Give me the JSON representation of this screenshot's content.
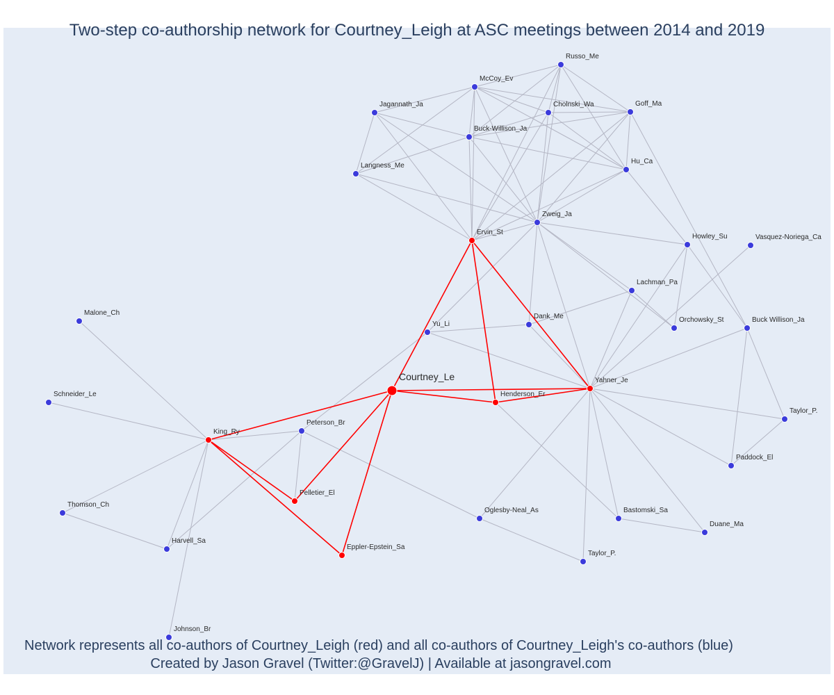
{
  "title": "Two-step co-authorship network for Courtney_Leigh at ASC meetings between 2014 and 2019",
  "footer": {
    "line1": "Network represents all co-authors of Courtney_Leigh (red) and all co-authors of Courtney_Leigh's co-authors (blue)",
    "line2": "Created by Jason Gravel (Twitter:@GravelJ) | Available at jasongravel.com"
  },
  "colors": {
    "plot_bg": "#e5ecf6",
    "first_degree": "#ff0000",
    "second_degree": "#3b3bdb",
    "edge_gray": "#b4b6c4",
    "edge_red": "#ff0000"
  },
  "nodes": [
    {
      "id": "Courtney_Le",
      "label": "Courtney_Le",
      "group": "focus"
    },
    {
      "id": "Ervin_St",
      "label": "Ervin_St",
      "group": "red"
    },
    {
      "id": "Yahner_Je",
      "label": "Yahner_Je",
      "group": "red"
    },
    {
      "id": "Henderson_Er",
      "label": "Henderson_Er",
      "group": "red"
    },
    {
      "id": "King_Ry",
      "label": "King_Ry",
      "group": "red"
    },
    {
      "id": "Pelletier_El",
      "label": "Pelletier_El",
      "group": "red"
    },
    {
      "id": "Eppler-Epstein_Sa",
      "label": "Eppler-Epstein_Sa",
      "group": "red"
    },
    {
      "id": "Russo_Me",
      "label": "Russo_Me",
      "group": "blue"
    },
    {
      "id": "McCoy_Ev",
      "label": "McCoy_Ev",
      "group": "blue"
    },
    {
      "id": "Jagannath_Ja",
      "label": "Jagannath_Ja",
      "group": "blue"
    },
    {
      "id": "Cholnski_Wa",
      "label": "Cholnski_Wa",
      "group": "blue"
    },
    {
      "id": "Goff_Ma",
      "label": "Goff_Ma",
      "group": "blue"
    },
    {
      "id": "Buck-Willison_Ja",
      "label": "Buck-Willison_Ja",
      "group": "blue"
    },
    {
      "id": "Langness_Me",
      "label": "Langness_Me",
      "group": "blue"
    },
    {
      "id": "Hu_Ca",
      "label": "Hu_Ca",
      "group": "blue"
    },
    {
      "id": "Zweig_Ja",
      "label": "Zweig_Ja",
      "group": "blue"
    },
    {
      "id": "Howley_Su",
      "label": "Howley_Su",
      "group": "blue"
    },
    {
      "id": "Vasquez-Noriega_Ca",
      "label": "Vasquez-Noriega_Ca",
      "group": "blue"
    },
    {
      "id": "Lachman_Pa",
      "label": "Lachman_Pa",
      "group": "blue"
    },
    {
      "id": "Malone_Ch",
      "label": "Malone_Ch",
      "group": "blue"
    },
    {
      "id": "Dank_Me",
      "label": "Dank_Me",
      "group": "blue"
    },
    {
      "id": "Yu_Li",
      "label": "Yu_Li",
      "group": "blue"
    },
    {
      "id": "Orchowsky_St",
      "label": "Orchowsky_St",
      "group": "blue"
    },
    {
      "id": "Buck_Willison_Ja",
      "label": "Buck Willison_Ja",
      "group": "blue"
    },
    {
      "id": "Schneider_Le",
      "label": "Schneider_Le",
      "group": "blue"
    },
    {
      "id": "Peterson_Br",
      "label": "Peterson_Br",
      "group": "blue"
    },
    {
      "id": "Taylor_P_1",
      "label": "Taylor_P.",
      "group": "blue"
    },
    {
      "id": "Paddock_El",
      "label": "Paddock_El",
      "group": "blue"
    },
    {
      "id": "Thomson_Ch",
      "label": "Thomson_Ch",
      "group": "blue"
    },
    {
      "id": "Oglesby-Neal_As",
      "label": "Oglesby-Neal_As",
      "group": "blue"
    },
    {
      "id": "Bastomski_Sa",
      "label": "Bastomski_Sa",
      "group": "blue"
    },
    {
      "id": "Harvell_Sa",
      "label": "Harvell_Sa",
      "group": "blue"
    },
    {
      "id": "Duane_Ma",
      "label": "Duane_Ma",
      "group": "blue"
    },
    {
      "id": "Taylor_P_2",
      "label": "Taylor_P.",
      "group": "blue"
    },
    {
      "id": "Johnson_Br",
      "label": "Johnson_Br",
      "group": "blue"
    }
  ],
  "edges": [
    [
      "Courtney_Le",
      "Ervin_St",
      "red"
    ],
    [
      "Courtney_Le",
      "Henderson_Er",
      "red"
    ],
    [
      "Courtney_Le",
      "Yahner_Je",
      "red"
    ],
    [
      "Courtney_Le",
      "King_Ry",
      "red"
    ],
    [
      "Courtney_Le",
      "Pelletier_El",
      "red"
    ],
    [
      "Courtney_Le",
      "Eppler-Epstein_Sa",
      "red"
    ],
    [
      "Ervin_St",
      "Henderson_Er",
      "red"
    ],
    [
      "Ervin_St",
      "Yahner_Je",
      "red"
    ],
    [
      "Henderson_Er",
      "Yahner_Je",
      "red"
    ],
    [
      "King_Ry",
      "Pelletier_El",
      "red"
    ],
    [
      "King_Ry",
      "Eppler-Epstein_Sa",
      "red"
    ],
    [
      "Russo_Me",
      "McCoy_Ev",
      "gray"
    ],
    [
      "Russo_Me",
      "Cholnski_Wa",
      "gray"
    ],
    [
      "Russo_Me",
      "Goff_Ma",
      "gray"
    ],
    [
      "Russo_Me",
      "Buck-Willison_Ja",
      "gray"
    ],
    [
      "Russo_Me",
      "Hu_Ca",
      "gray"
    ],
    [
      "Russo_Me",
      "Zweig_Ja",
      "gray"
    ],
    [
      "Russo_Me",
      "Ervin_St",
      "gray"
    ],
    [
      "McCoy_Ev",
      "Cholnski_Wa",
      "gray"
    ],
    [
      "McCoy_Ev",
      "Goff_Ma",
      "gray"
    ],
    [
      "McCoy_Ev",
      "Jagannath_Ja",
      "gray"
    ],
    [
      "McCoy_Ev",
      "Langness_Me",
      "gray"
    ],
    [
      "McCoy_Ev",
      "Buck-Willison_Ja",
      "gray"
    ],
    [
      "McCoy_Ev",
      "Hu_Ca",
      "gray"
    ],
    [
      "McCoy_Ev",
      "Zweig_Ja",
      "gray"
    ],
    [
      "McCoy_Ev",
      "Ervin_St",
      "gray"
    ],
    [
      "Jagannath_Ja",
      "Buck-Willison_Ja",
      "gray"
    ],
    [
      "Jagannath_Ja",
      "Langness_Me",
      "gray"
    ],
    [
      "Jagannath_Ja",
      "Zweig_Ja",
      "gray"
    ],
    [
      "Jagannath_Ja",
      "Ervin_St",
      "gray"
    ],
    [
      "Cholnski_Wa",
      "Goff_Ma",
      "gray"
    ],
    [
      "Cholnski_Wa",
      "Buck-Willison_Ja",
      "gray"
    ],
    [
      "Cholnski_Wa",
      "Hu_Ca",
      "gray"
    ],
    [
      "Cholnski_Wa",
      "Zweig_Ja",
      "gray"
    ],
    [
      "Cholnski_Wa",
      "Ervin_St",
      "gray"
    ],
    [
      "Goff_Ma",
      "Buck-Willison_Ja",
      "gray"
    ],
    [
      "Goff_Ma",
      "Hu_Ca",
      "gray"
    ],
    [
      "Goff_Ma",
      "Zweig_Ja",
      "gray"
    ],
    [
      "Goff_Ma",
      "Ervin_St",
      "gray"
    ],
    [
      "Goff_Ma",
      "Buck_Willison_Ja",
      "gray"
    ],
    [
      "Buck-Willison_Ja",
      "Langness_Me",
      "gray"
    ],
    [
      "Buck-Willison_Ja",
      "Hu_Ca",
      "gray"
    ],
    [
      "Buck-Willison_Ja",
      "Zweig_Ja",
      "gray"
    ],
    [
      "Buck-Willison_Ja",
      "Ervin_St",
      "gray"
    ],
    [
      "Langness_Me",
      "Zweig_Ja",
      "gray"
    ],
    [
      "Langness_Me",
      "Ervin_St",
      "gray"
    ],
    [
      "Hu_Ca",
      "Zweig_Ja",
      "gray"
    ],
    [
      "Hu_Ca",
      "Ervin_St",
      "gray"
    ],
    [
      "Hu_Ca",
      "Howley_Su",
      "gray"
    ],
    [
      "Zweig_Ja",
      "Ervin_St",
      "gray"
    ],
    [
      "Zweig_Ja",
      "Howley_Su",
      "gray"
    ],
    [
      "Zweig_Ja",
      "Lachman_Pa",
      "gray"
    ],
    [
      "Zweig_Ja",
      "Orchowsky_St",
      "gray"
    ],
    [
      "Zweig_Ja",
      "Dank_Me",
      "gray"
    ],
    [
      "Zweig_Ja",
      "Yu_Li",
      "gray"
    ],
    [
      "Zweig_Ja",
      "Yahner_Je",
      "gray"
    ],
    [
      "Howley_Su",
      "Yahner_Je",
      "gray"
    ],
    [
      "Howley_Su",
      "Orchowsky_St",
      "gray"
    ],
    [
      "Howley_Su",
      "Buck_Willison_Ja",
      "gray"
    ],
    [
      "Vasquez-Noriega_Ca",
      "Yahner_Je",
      "gray"
    ],
    [
      "Lachman_Pa",
      "Yahner_Je",
      "gray"
    ],
    [
      "Lachman_Pa",
      "Dank_Me",
      "gray"
    ],
    [
      "Lachman_Pa",
      "Orchowsky_St",
      "gray"
    ],
    [
      "Dank_Me",
      "Yu_Li",
      "gray"
    ],
    [
      "Dank_Me",
      "Yahner_Je",
      "gray"
    ],
    [
      "Yu_Li",
      "Yahner_Je",
      "gray"
    ],
    [
      "Yu_Li",
      "Peterson_Br",
      "gray"
    ],
    [
      "Buck_Willison_Ja",
      "Yahner_Je",
      "gray"
    ],
    [
      "Buck_Willison_Ja",
      "Taylor_P_1",
      "gray"
    ],
    [
      "Buck_Willison_Ja",
      "Paddock_El",
      "gray"
    ],
    [
      "Taylor_P_1",
      "Yahner_Je",
      "gray"
    ],
    [
      "Taylor_P_1",
      "Paddock_El",
      "gray"
    ],
    [
      "Paddock_El",
      "Yahner_Je",
      "gray"
    ],
    [
      "Yahner_Je",
      "Oglesby-Neal_As",
      "gray"
    ],
    [
      "Yahner_Je",
      "Bastomski_Sa",
      "gray"
    ],
    [
      "Yahner_Je",
      "Duane_Ma",
      "gray"
    ],
    [
      "Yahner_Je",
      "Taylor_P_2",
      "gray"
    ],
    [
      "Henderson_Er",
      "Bastomski_Sa",
      "gray"
    ],
    [
      "Bastomski_Sa",
      "Duane_Ma",
      "gray"
    ],
    [
      "Peterson_Br",
      "King_Ry",
      "gray"
    ],
    [
      "Peterson_Br",
      "Pelletier_El",
      "gray"
    ],
    [
      "Peterson_Br",
      "Harvell_Sa",
      "gray"
    ],
    [
      "Peterson_Br",
      "Oglesby-Neal_As",
      "gray"
    ],
    [
      "Oglesby-Neal_As",
      "Taylor_P_2",
      "gray"
    ],
    [
      "Malone_Ch",
      "King_Ry",
      "gray"
    ],
    [
      "Schneider_Le",
      "King_Ry",
      "gray"
    ],
    [
      "King_Ry",
      "Thomson_Ch",
      "gray"
    ],
    [
      "King_Ry",
      "Harvell_Sa",
      "gray"
    ],
    [
      "King_Ry",
      "Johnson_Br",
      "gray"
    ],
    [
      "Thomson_Ch",
      "Harvell_Sa",
      "gray"
    ]
  ]
}
